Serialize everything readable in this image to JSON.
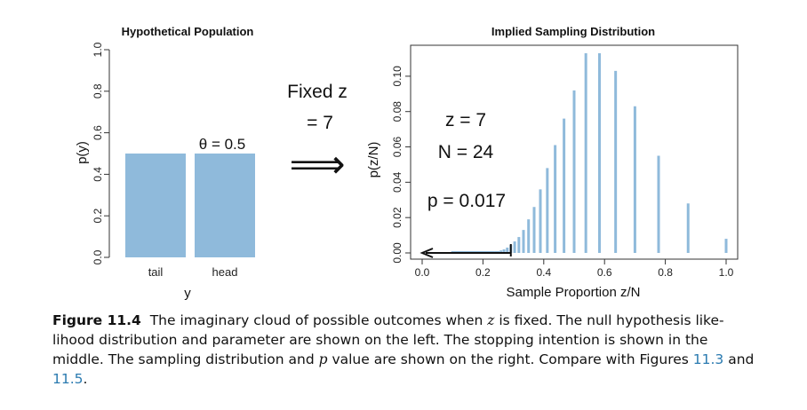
{
  "chart_data": [
    {
      "type": "bar",
      "title": "Hypothetical Population",
      "xlabel": "y",
      "ylabel": "p(y)",
      "categories": [
        "tail",
        "head"
      ],
      "values": [
        0.5,
        0.5
      ],
      "ylim": [
        0,
        1.0
      ],
      "yticks": [
        "0.0",
        "0.2",
        "0.4",
        "0.6",
        "0.8",
        "1.0"
      ],
      "annotation": "θ = 0.5",
      "bar_color": "#8fbadb"
    },
    {
      "type": "bar",
      "title": "Implied Sampling Distribution",
      "xlabel": "Sample Proportion z/N",
      "ylabel": "p(z/N)",
      "xlim": [
        0,
        1.0
      ],
      "ylim": [
        0,
        0.113
      ],
      "xticks": [
        "0.0",
        "0.2",
        "0.4",
        "0.6",
        "0.8",
        "1.0"
      ],
      "yticks": [
        "0.00",
        "0.02",
        "0.04",
        "0.06",
        "0.08",
        "0.10"
      ],
      "annotations": [
        "z = 7",
        "N = 24",
        "p = 0.017"
      ],
      "observed_proportion": 0.2917,
      "bar_color": "#8fbadb",
      "x": [
        1.0,
        0.875,
        0.7778,
        0.7,
        0.6364,
        0.5833,
        0.5385,
        0.5,
        0.4667,
        0.4375,
        0.4118,
        0.3889,
        0.3684,
        0.35,
        0.3333,
        0.3182,
        0.3043,
        0.2917,
        0.28,
        0.2692,
        0.2593,
        0.25,
        0.2414,
        0.2333,
        0.2258,
        0.2188,
        0.2121,
        0.2059,
        0.2,
        0.1944,
        0.1892,
        0.1842,
        0.1795,
        0.175,
        0.1707,
        0.1667,
        0.1628,
        0.1591,
        0.1556,
        0.1522,
        0.1489,
        0.1458,
        0.1429,
        0.14,
        0.1373,
        0.1346,
        0.1321,
        0.1296,
        0.1273,
        0.125,
        0.1228,
        0.1207,
        0.1186,
        0.1167,
        0.1148,
        0.1129,
        0.1111,
        0.1094,
        0.1077,
        0.1061,
        0.1045,
        0.1029,
        0.1014,
        0.1
      ],
      "y": [
        0.008,
        0.028,
        0.055,
        0.083,
        0.103,
        0.113,
        0.113,
        0.092,
        0.076,
        0.061,
        0.048,
        0.036,
        0.026,
        0.019,
        0.013,
        0.009,
        0.0065,
        0.0045,
        0.003,
        0.002,
        0.0014,
        0.001,
        0.001,
        0.001,
        0.001,
        0.001,
        0.001,
        0.001,
        0.001,
        0.001,
        0.001,
        0.001,
        0.001,
        0.001,
        0.001,
        0.001,
        0.001,
        0.001,
        0.001,
        0.001,
        0.001,
        0.001,
        0.001,
        0.001,
        0.001,
        0.001,
        0.001,
        0.001,
        0.001,
        0.001,
        0.001,
        0.001,
        0.001,
        0.001,
        0.001,
        0.001,
        0.001,
        0.001,
        0.001,
        0.001,
        0.001,
        0.001,
        0.001,
        0.001
      ]
    }
  ],
  "middle": {
    "line1": "Fixed z",
    "line2": "= 7",
    "arrow": "⟹"
  },
  "caption": {
    "label": "Figure 11.4",
    "text_a": "The imaginary cloud of possible outcomes when ",
    "var_z": "z",
    "text_b": " is fixed. The null hypothesis like-lihood distribution and parameter are shown on the left. The stopping intention is shown in the middle. The sampling distribution and ",
    "var_p": "p",
    "text_c": " value are shown on the right. Compare with Figures ",
    "ref1": "11.3",
    "text_d": " and ",
    "ref2": "11.5",
    "text_e": "."
  }
}
